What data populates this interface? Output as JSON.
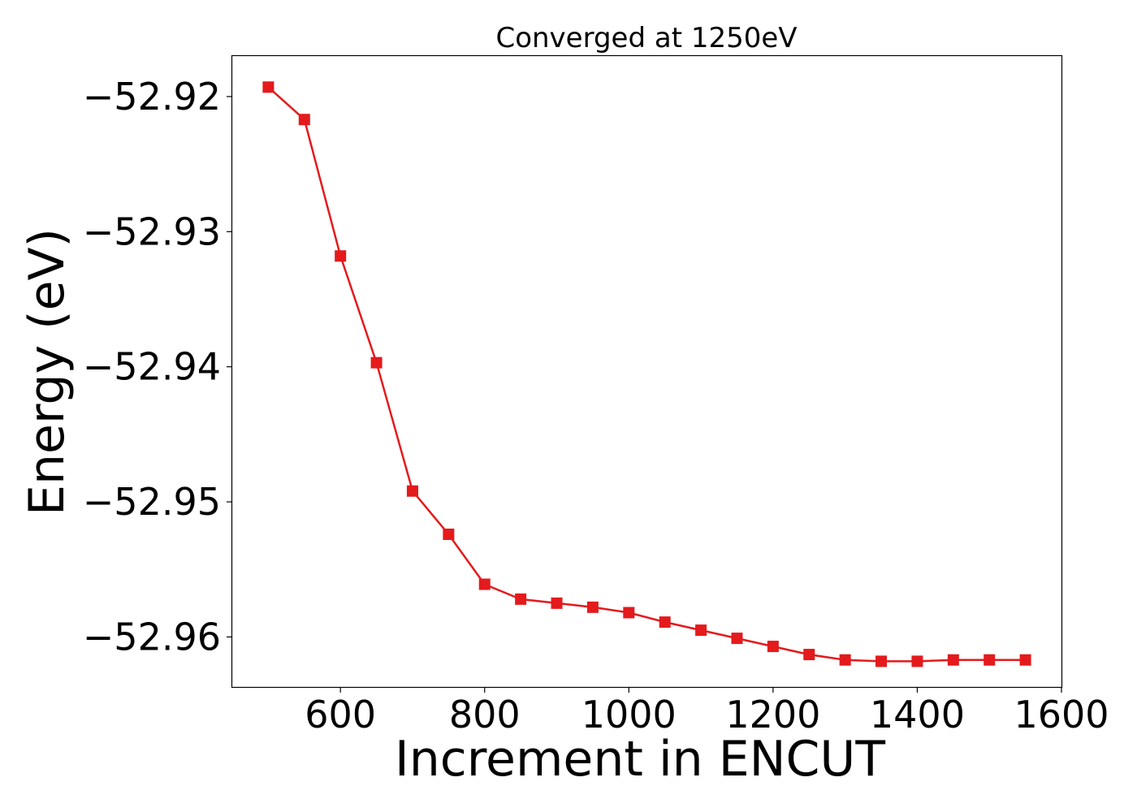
{
  "chart_data": {
    "type": "line",
    "title": "Converged at 1250eV",
    "xlabel": "Increment in ENCUT",
    "ylabel": "Energy (eV)",
    "xlim": [
      450,
      1600
    ],
    "ylim": [
      -52.9637,
      -52.917
    ],
    "xticks": [
      600,
      800,
      1000,
      1200,
      1400,
      1600
    ],
    "xtick_labels": [
      "600",
      "800",
      "1000",
      "1200",
      "1400",
      "1600"
    ],
    "yticks": [
      -52.92,
      -52.93,
      -52.94,
      -52.95,
      -52.96
    ],
    "ytick_labels": [
      "−52.92",
      "−52.93",
      "−52.94",
      "−52.95",
      "−52.96"
    ],
    "grid": false,
    "legend": "none",
    "marker": "square",
    "color": "#e41a1c",
    "series": [
      {
        "x": [
          500,
          550,
          600,
          650,
          700,
          750,
          800,
          850,
          900,
          950,
          1000,
          1050,
          1100,
          1150,
          1200,
          1250,
          1300,
          1350,
          1400,
          1450,
          1500,
          1550
        ],
        "y": [
          -52.9193,
          -52.9217,
          -52.9318,
          -52.9397,
          -52.9492,
          -52.9524,
          -52.9561,
          -52.9572,
          -52.9575,
          -52.9578,
          -52.9582,
          -52.9589,
          -52.9595,
          -52.9601,
          -52.9607,
          -52.9613,
          -52.9617,
          -52.9618,
          -52.9618,
          -52.9617,
          -52.9617,
          -52.9617
        ]
      }
    ]
  }
}
